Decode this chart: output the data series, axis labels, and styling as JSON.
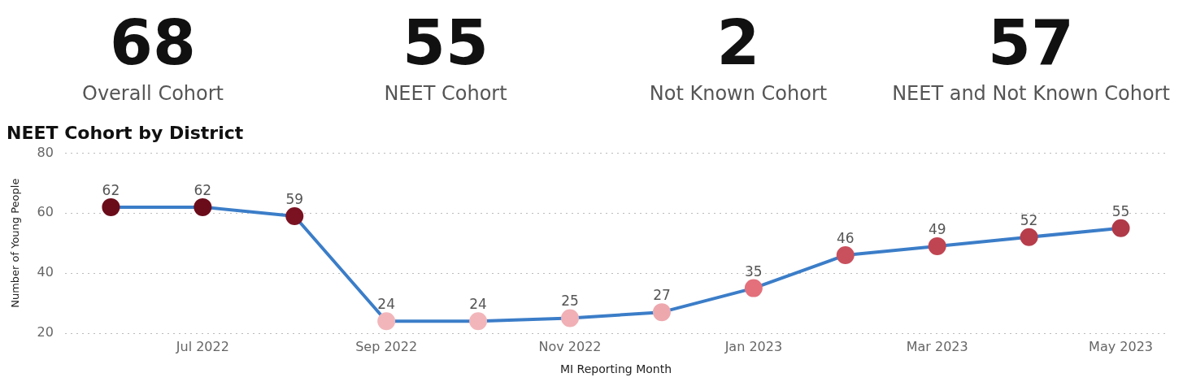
{
  "chart_data": [
    {
      "type": "other",
      "categories": [
        "Overall Cohort",
        "NEET Cohort",
        "Not Known Cohort",
        "NEET and Not Known Cohort"
      ],
      "values": [
        68,
        55,
        2,
        57
      ],
      "data_labels": true
    },
    {
      "type": "line",
      "title": "NEET Cohort by District",
      "xlabel": "MI Reporting Month",
      "ylabel": "Number of Young People",
      "categories": [
        null,
        "Jul 2022",
        null,
        "Sep 2022",
        null,
        "Nov 2022",
        null,
        "Jan 2023",
        null,
        "Mar 2023",
        null,
        "May 2023"
      ],
      "series": [
        {
          "color": "#3b7dc8",
          "colors": [
            "#6b0c1a",
            "#6b0c1a",
            "#7a1222",
            "#f2b6ba",
            "#f2b6ba",
            "#f0b0b5",
            "#eda8ae",
            "#e3707b",
            "#c9505d",
            "#c04552",
            "#b73d4b",
            "#b03a48"
          ],
          "values": [
            62,
            62,
            59,
            24,
            24,
            25,
            27,
            35,
            46,
            49,
            52,
            55
          ]
        }
      ],
      "ylim": [
        20,
        80
      ],
      "yticks": [
        20,
        40,
        60,
        80
      ],
      "grid": "y",
      "marker": "circle",
      "line_style": "solid",
      "data_labels": true,
      "legend": false
    }
  ]
}
